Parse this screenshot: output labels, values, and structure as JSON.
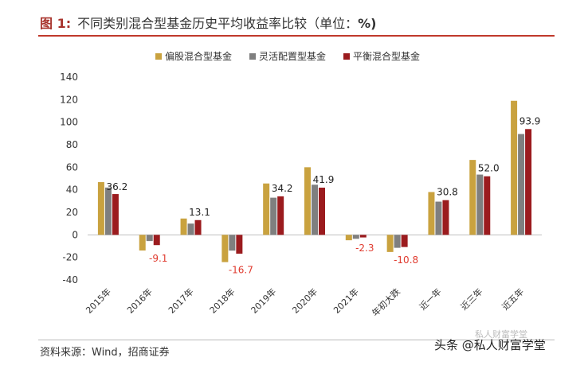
{
  "header": {
    "figure_label": "图 1:",
    "title": "不同类别混合型基金历史平均收益率比较（单位：",
    "unit": "%)"
  },
  "chart_data": {
    "type": "bar",
    "title": "不同类别混合型基金历史平均收益率比较（单位：%)",
    "categories": [
      "2015年",
      "2016年",
      "2017年",
      "2018年",
      "2019年",
      "2020年",
      "2021年",
      "年初大跌",
      "近一年",
      "近三年",
      "近五年"
    ],
    "series": [
      {
        "name": "偏股混合型基金",
        "color": "#c9a23f",
        "values": [
          46.8,
          -13.9,
          14.5,
          -24.2,
          45.6,
          60.0,
          -4.8,
          -15.2,
          38.0,
          66.5,
          119.0
        ]
      },
      {
        "name": "灵活配置型基金",
        "color": "#7f7f7f",
        "values": [
          42.0,
          -5.5,
          10.0,
          -14.0,
          33.0,
          44.5,
          -3.5,
          -11.5,
          29.5,
          53.5,
          89.5
        ]
      },
      {
        "name": "平衡混合型基金",
        "color": "#9b1b1e",
        "values": [
          36.2,
          -9.1,
          13.1,
          -16.7,
          34.2,
          41.9,
          -2.3,
          -10.8,
          30.8,
          52.0,
          93.9
        ]
      }
    ],
    "data_labels": [
      {
        "category": "2015年",
        "text": "36.2",
        "negative": false
      },
      {
        "category": "2016年",
        "text": "-9.1",
        "negative": true
      },
      {
        "category": "2017年",
        "text": "13.1",
        "negative": false
      },
      {
        "category": "2018年",
        "text": "-16.7",
        "negative": true
      },
      {
        "category": "2019年",
        "text": "34.2",
        "negative": false
      },
      {
        "category": "2020年",
        "text": "41.9",
        "negative": false
      },
      {
        "category": "2021年",
        "text": "-2.3",
        "negative": true
      },
      {
        "category": "年初大跌",
        "text": "-10.8",
        "negative": true
      },
      {
        "category": "近一年",
        "text": "30.8",
        "negative": false
      },
      {
        "category": "近三年",
        "text": "52.0",
        "negative": false
      },
      {
        "category": "近五年",
        "text": "93.9",
        "negative": false
      }
    ],
    "yticks": [
      -40,
      -20,
      0,
      20,
      40,
      60,
      80,
      100,
      120,
      140
    ],
    "ylim": [
      -40,
      140
    ],
    "xlabel": "",
    "ylabel": "",
    "grid": false,
    "legend_position": "top-center",
    "label_colors": {
      "positive": "#222222",
      "negative": "#e03b2f"
    }
  },
  "footer": {
    "source": "资料来源：Wind，招商证券",
    "watermark": "头条 @私人财富学堂",
    "watermark_faint": "私人财富学堂"
  }
}
